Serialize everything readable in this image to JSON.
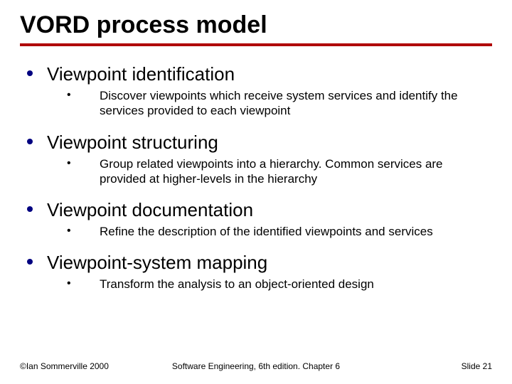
{
  "title": "VORD process model",
  "accent_color": "#b00000",
  "bullet_color": "#000080",
  "items": [
    {
      "label": "Viewpoint identification",
      "sub": "Discover viewpoints which receive system services and identify the services provided to each viewpoint"
    },
    {
      "label": "Viewpoint structuring",
      "sub": "Group related viewpoints into a hierarchy. Common services are provided at higher-levels in the hierarchy"
    },
    {
      "label": "Viewpoint documentation",
      "sub": "Refine the description of the identified viewpoints and services"
    },
    {
      "label": "Viewpoint-system mapping",
      "sub": "Transform the analysis to an object-oriented design"
    }
  ],
  "footer": {
    "left": "©Ian Sommerville 2000",
    "center": "Software Engineering, 6th edition. Chapter 6",
    "right": "Slide 21"
  }
}
